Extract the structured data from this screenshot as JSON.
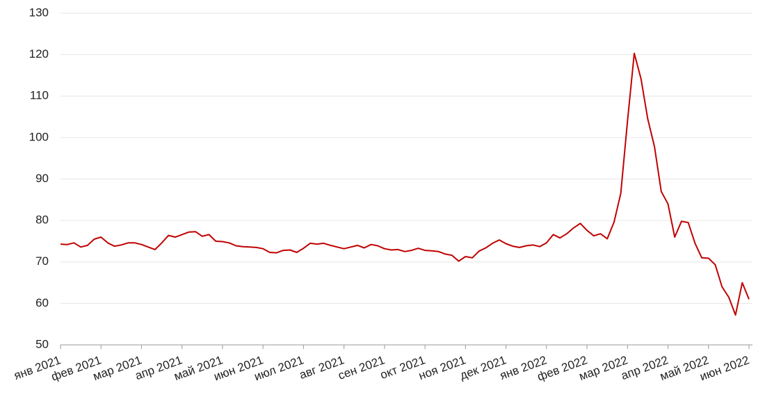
{
  "chart_data": {
    "type": "line",
    "categories": [
      "янв 2021",
      null,
      null,
      null,
      null,
      null,
      "фев 2021",
      null,
      null,
      null,
      null,
      null,
      "мар 2021",
      null,
      null,
      null,
      null,
      null,
      "апр 2021",
      null,
      null,
      null,
      null,
      null,
      "май 2021",
      null,
      null,
      null,
      null,
      null,
      "июн 2021",
      null,
      null,
      null,
      null,
      null,
      "июл 2021",
      null,
      null,
      null,
      null,
      null,
      "авг 2021",
      null,
      null,
      null,
      null,
      null,
      "сен 2021",
      null,
      null,
      null,
      null,
      null,
      "окт 2021",
      null,
      null,
      null,
      null,
      null,
      "ноя 2021",
      null,
      null,
      null,
      null,
      null,
      "дек 2021",
      null,
      null,
      null,
      null,
      null,
      "янв 2022",
      null,
      null,
      null,
      null,
      null,
      "фев 2022",
      null,
      null,
      null,
      null,
      null,
      "мар 2022",
      null,
      null,
      null,
      null,
      null,
      "апр 2022",
      null,
      null,
      null,
      null,
      null,
      "май 2022",
      null,
      null,
      null,
      null,
      null,
      "июн 2022"
    ],
    "values": [
      74.3,
      74.2,
      74.6,
      73.6,
      74.0,
      75.5,
      76.0,
      74.6,
      73.8,
      74.1,
      74.6,
      74.6,
      74.2,
      73.6,
      73.0,
      74.6,
      76.4,
      76.0,
      76.6,
      77.2,
      77.3,
      76.2,
      76.6,
      75.0,
      74.9,
      74.6,
      73.9,
      73.7,
      73.6,
      73.5,
      73.2,
      72.3,
      72.2,
      72.8,
      72.9,
      72.3,
      73.3,
      74.5,
      74.3,
      74.5,
      74.0,
      73.6,
      73.2,
      73.6,
      74.0,
      73.4,
      74.2,
      73.9,
      73.2,
      72.9,
      73.0,
      72.5,
      72.8,
      73.3,
      72.8,
      72.7,
      72.5,
      71.9,
      71.6,
      70.2,
      71.3,
      71.0,
      72.6,
      73.4,
      74.5,
      75.3,
      74.4,
      73.8,
      73.5,
      73.9,
      74.1,
      73.7,
      74.6,
      76.6,
      75.8,
      76.8,
      78.2,
      79.3,
      77.6,
      76.3,
      76.8,
      75.6,
      79.6,
      86.5,
      104.0,
      120.3,
      114.2,
      104.5,
      97.8,
      87.0,
      84.0,
      76.0,
      79.8,
      79.5,
      74.5,
      71.0,
      70.9,
      69.3,
      64.0,
      61.5,
      57.2,
      65.0,
      61.0
    ],
    "color": "#c00000",
    "ylim": [
      50,
      130
    ],
    "yticks": [
      50,
      60,
      70,
      80,
      90,
      100,
      110,
      120,
      130
    ],
    "grid": true
  }
}
